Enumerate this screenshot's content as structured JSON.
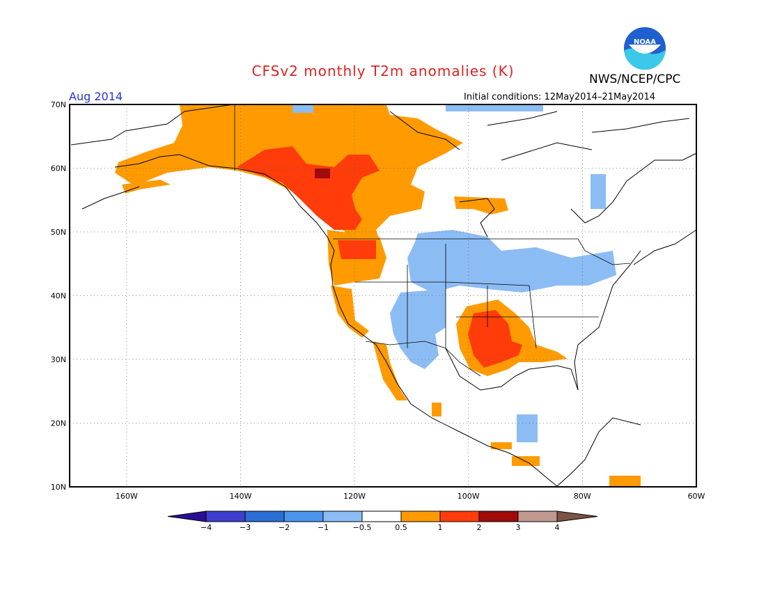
{
  "header": {
    "title": "CFSv2 monthly T2m anomalies (K)",
    "agency": "NWS/NCEP/CPC",
    "logo_text": "NOAA",
    "target_month": "Aug 2014",
    "initial_conditions": "Initial conditions: 12May2014–21May2014"
  },
  "map": {
    "lat_ticks": [
      "70N",
      "60N",
      "50N",
      "40N",
      "30N",
      "20N",
      "10N"
    ],
    "lon_ticks": [
      "160W",
      "140W",
      "120W",
      "100W",
      "80W",
      "60W"
    ],
    "lat_range": [
      10,
      70
    ],
    "lon_range": [
      -170,
      -60
    ]
  },
  "legend": {
    "labels": [
      "−4",
      "−3",
      "−2",
      "−1",
      "−0.5",
      "0.5",
      "1",
      "2",
      "3",
      "4"
    ],
    "colors": [
      "#2a0f96",
      "#3f3fcf",
      "#2a6fd6",
      "#4a95ee",
      "#8cbcf4",
      "#ffffff",
      "#ff9b00",
      "#ff3c0a",
      "#a00a0a",
      "#c09a90",
      "#7b5444"
    ]
  },
  "anomaly_regions": [
    {
      "name": "alaska-yukon-warm",
      "level": "0.5 to 1",
      "color": "#ff9b00"
    },
    {
      "name": "british-columbia-warm",
      "level": "1 to 2",
      "color": "#ff3c0a"
    },
    {
      "name": "southern-plains-warm",
      "level": "1 to 2",
      "color": "#ff3c0a"
    },
    {
      "name": "northern-plains-cool",
      "level": "-1 to -0.5",
      "color": "#8cbcf4"
    },
    {
      "name": "southwest-cool",
      "level": "-1 to -0.5",
      "color": "#8cbcf4"
    },
    {
      "name": "great-lakes-cool",
      "level": "-1 to -0.5",
      "color": "#8cbcf4"
    }
  ]
}
